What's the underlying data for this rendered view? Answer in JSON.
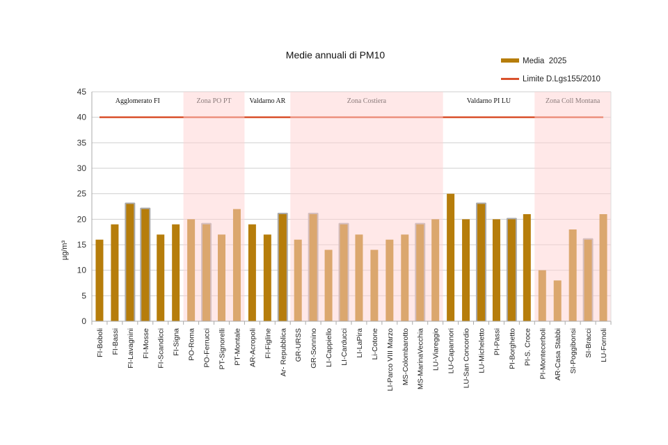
{
  "chart_data": {
    "type": "bar",
    "title": "Medie annuali di PM10",
    "ylabel": "µg/m³",
    "xlabel": "",
    "ylim": [
      0,
      45
    ],
    "yticks": [
      0,
      5,
      10,
      15,
      20,
      25,
      30,
      35,
      40,
      45
    ],
    "grid": true,
    "legend_position": "top-right",
    "categories": [
      "FI-Boboli",
      "FI-Bassi",
      "FI-Lavagnini",
      "FI-Mosse",
      "FI-Scandicci",
      "FI-Signa",
      "PO-Roma",
      "PO-Ferrucci",
      "PT-Signorelli",
      "PT-Montale",
      "AR-Acropoli",
      "FI-Figline",
      "Ar- Repubblica",
      "GR-URSS",
      "GR-Sonnino",
      "LI-Cappiello",
      "LI-Carducci",
      "LI-LaPira",
      "Li-Cotone",
      "LI-Parco VIII Marzo",
      "MS-Colombarotto",
      "MS-MarinaVecchia",
      "LU-Viareggio",
      "LU-Capannori",
      "LU-San Concordio",
      "LU-Micheletto",
      "PI-Passi",
      "PI-Borghetto",
      "PI-S. Croce",
      "PI-Montecerboli",
      "AR-Casa Stabbi",
      "SI-Poggibonsi",
      "SI-Bracci",
      "LU-Fornoli"
    ],
    "series": [
      {
        "name": "Media  2025",
        "type": "bar",
        "color": "#b67d0b",
        "values": [
          16,
          19,
          23,
          22,
          17,
          19,
          20,
          19,
          17,
          22,
          19,
          17,
          21,
          16,
          21,
          14,
          19,
          17,
          14,
          16,
          17,
          19,
          20,
          25,
          20,
          23,
          20,
          20,
          21,
          10,
          8,
          18,
          16,
          21
        ]
      },
      {
        "name": "Limite D.Lgs155/2010",
        "type": "line",
        "color": "#d9512c",
        "values": [
          40,
          40,
          40,
          40,
          40,
          40,
          40,
          40,
          40,
          40,
          40,
          40,
          40,
          40,
          40,
          40,
          40,
          40,
          40,
          40,
          40,
          40,
          40,
          40,
          40,
          40,
          40,
          40,
          40,
          40,
          40,
          40,
          40,
          40
        ]
      }
    ],
    "highlighted_stations": [
      "FI-Lavagnini",
      "FI-Mosse",
      "PO-Ferrucci",
      "Ar- Repubblica",
      "GR-Sonnino",
      "LI-Carducci",
      "MS-MarinaVecchia",
      "LU-Micheletto",
      "PI-Borghetto",
      "SI-Bracci"
    ],
    "zones": [
      {
        "label": "Agglomerato FI",
        "from": 0,
        "to": 5,
        "shaded": false
      },
      {
        "label": "Zona PO PT",
        "from": 6,
        "to": 9,
        "shaded": true
      },
      {
        "label": "Valdarno AR",
        "from": 10,
        "to": 12,
        "shaded": false
      },
      {
        "label": "Zona Costiera",
        "from": 13,
        "to": 22,
        "shaded": true
      },
      {
        "label": "Valdarno PI LU",
        "from": 23,
        "to": 28,
        "shaded": false
      },
      {
        "label": "Zona Coll Montana",
        "from": 29,
        "to": 33,
        "shaded": true
      }
    ],
    "shade_color": "#ffe8e8"
  }
}
